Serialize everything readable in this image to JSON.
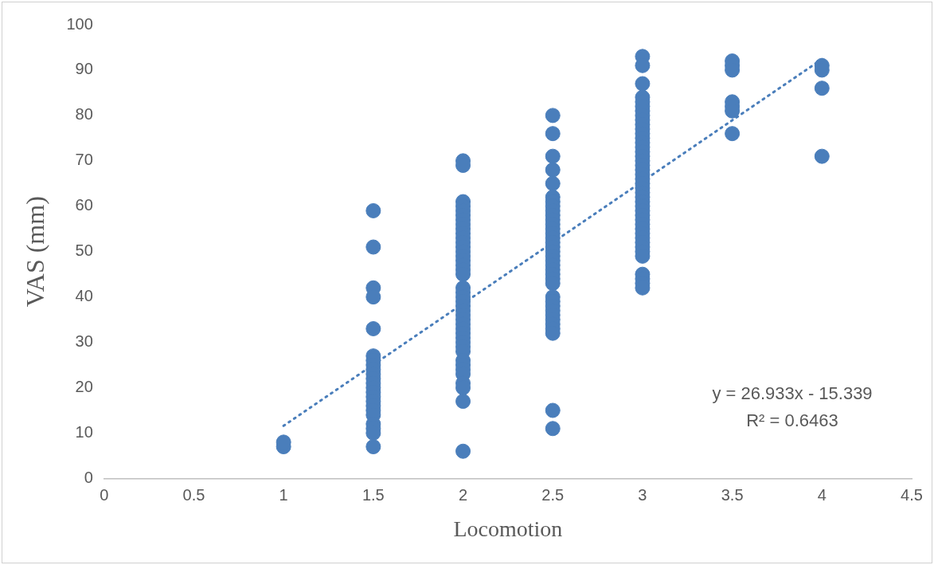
{
  "chart_data": {
    "type": "scatter",
    "xlabel": "Locomotion",
    "ylabel": "VAS (mm)",
    "xlim": [
      0,
      4.5
    ],
    "xticks": [
      0,
      0.5,
      1,
      1.5,
      2,
      2.5,
      3,
      3.5,
      4,
      4.5
    ],
    "ylim": [
      0,
      100
    ],
    "yticks": [
      0,
      10,
      20,
      30,
      40,
      50,
      60,
      70,
      80,
      90,
      100
    ],
    "marker": "circle",
    "annotations": [
      "y = 26.933x - 15.339",
      "R² = 0.6463"
    ],
    "series": [
      {
        "color": "#4a7ebb",
        "x": [
          1,
          1,
          1.5,
          1.5,
          1.5,
          1.5,
          1.5,
          1.5,
          1.5,
          1.5,
          1.5,
          1.5,
          1.5,
          1.5,
          1.5,
          1.5,
          1.5,
          1.5,
          1.5,
          1.5,
          1.5,
          1.5,
          1.5,
          1.5,
          1.5,
          2,
          2,
          2,
          2,
          2,
          2,
          2,
          2,
          2,
          2,
          2,
          2,
          2,
          2,
          2,
          2,
          2,
          2,
          2,
          2,
          2,
          2,
          2,
          2,
          2,
          2,
          2,
          2,
          2,
          2,
          2,
          2,
          2,
          2,
          2,
          2,
          2,
          2,
          2,
          2,
          2,
          2,
          2.5,
          2.5,
          2.5,
          2.5,
          2.5,
          2.5,
          2.5,
          2.5,
          2.5,
          2.5,
          2.5,
          2.5,
          2.5,
          2.5,
          2.5,
          2.5,
          2.5,
          2.5,
          2.5,
          2.5,
          2.5,
          2.5,
          2.5,
          2.5,
          2.5,
          2.5,
          2.5,
          2.5,
          2.5,
          2.5,
          2.5,
          2.5,
          2.5,
          2.5,
          2.5,
          2.5,
          3,
          3,
          3,
          3,
          3,
          3,
          3,
          3,
          3,
          3,
          3,
          3,
          3,
          3,
          3,
          3,
          3,
          3,
          3,
          3,
          3,
          3,
          3,
          3,
          3,
          3,
          3,
          3,
          3,
          3,
          3,
          3,
          3,
          3,
          3,
          3,
          3,
          3,
          3,
          3,
          3,
          3,
          3,
          3.5,
          3.5,
          3.5,
          3.5,
          3.5,
          3.5,
          3.5,
          4,
          4,
          4,
          4
        ],
        "values": [
          7,
          8,
          59,
          51,
          42,
          40,
          33,
          27,
          26,
          25,
          24,
          23,
          22,
          21,
          20,
          19,
          18,
          17,
          16,
          15,
          14,
          12,
          11,
          10,
          7,
          70,
          69,
          61,
          60,
          59,
          58,
          57,
          56,
          55,
          54,
          53,
          52,
          51,
          50,
          49,
          48,
          47,
          46,
          45,
          42,
          41,
          40,
          39,
          38,
          37,
          36,
          35,
          34,
          33,
          32,
          31,
          30,
          29,
          28,
          26,
          25,
          24,
          23,
          21,
          20,
          17,
          6,
          80,
          76,
          71,
          68,
          65,
          62,
          61,
          60,
          59,
          58,
          57,
          56,
          55,
          54,
          53,
          52,
          51,
          50,
          49,
          48,
          47,
          46,
          45,
          44,
          43,
          40,
          39,
          38,
          37,
          36,
          35,
          34,
          33,
          32,
          15,
          11,
          93,
          91,
          87,
          84,
          83,
          82,
          81,
          80,
          79,
          78,
          77,
          76,
          75,
          74,
          73,
          72,
          71,
          70,
          69,
          68,
          67,
          66,
          65,
          64,
          63,
          62,
          61,
          60,
          59,
          58,
          57,
          56,
          55,
          54,
          53,
          52,
          51,
          50,
          49,
          45,
          44,
          43,
          42,
          92,
          91,
          90,
          83,
          82,
          81,
          76,
          91,
          90,
          86,
          71
        ]
      },
      {
        "type": "line",
        "color": "#4a7ebb",
        "line_style": "dotted",
        "marker": "none",
        "x": [
          1,
          4
        ],
        "values": [
          11.6,
          92.4
        ]
      }
    ]
  }
}
